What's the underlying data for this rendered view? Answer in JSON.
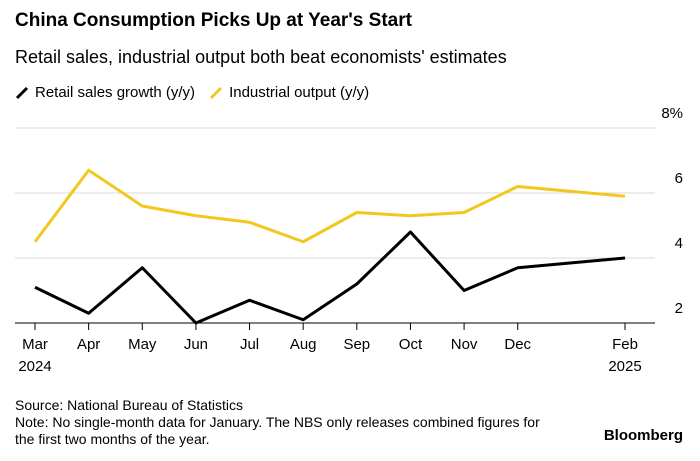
{
  "chart_data": {
    "type": "line",
    "title": "China Consumption Picks Up at Year's Start",
    "subtitle": "Retail sales, industrial output both beat economists' estimates",
    "categories": [
      "Mar 2024",
      "Apr",
      "May",
      "Jun",
      "Jul",
      "Aug",
      "Sep",
      "Oct",
      "Nov",
      "Dec",
      null,
      "Feb 2025"
    ],
    "series": [
      {
        "name": "Retail sales growth (y/y)",
        "color": "#000000",
        "values": [
          3.1,
          2.3,
          3.7,
          2.0,
          2.7,
          2.1,
          3.2,
          4.8,
          3.0,
          3.7,
          null,
          4.0
        ]
      },
      {
        "name": "Industrial output (y/y)",
        "color": "#f2c81e",
        "values": [
          4.5,
          6.7,
          5.6,
          5.3,
          5.1,
          4.5,
          5.4,
          5.3,
          5.4,
          6.2,
          null,
          5.9
        ]
      }
    ],
    "ylim": [
      2,
      8
    ],
    "yticks": [
      {
        "value": 8,
        "label": "8%"
      },
      6,
      4,
      2
    ],
    "grid": true,
    "source": "Source: National Bureau of Statistics",
    "note": "Note: No single-month data for January. The NBS only releases combined figures for the first two months of the year.",
    "brand": "Bloomberg"
  }
}
